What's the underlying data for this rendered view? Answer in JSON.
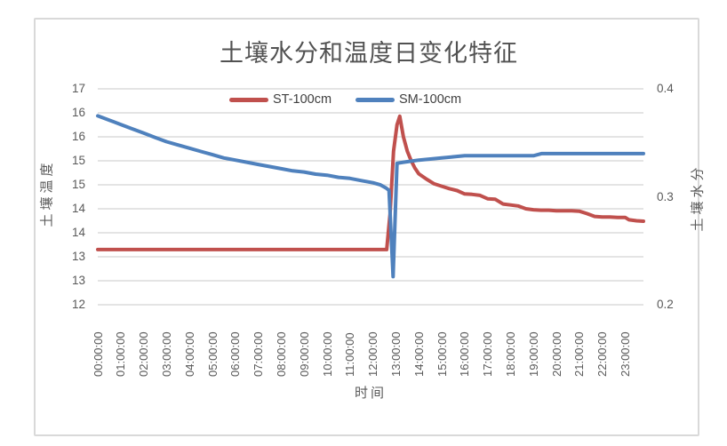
{
  "chart_data": {
    "type": "line",
    "title": "土壤水分和温度日变化特征",
    "xlabel": "时间",
    "ylabel_left": "土壤温度",
    "ylabel_right": "土壤水分",
    "legend": {
      "position": "top-inside",
      "entries": [
        "ST-100cm",
        "SM-100cm"
      ]
    },
    "left_axis": {
      "min": 12,
      "max": 16.5,
      "step": 0.5,
      "tick_labels_top_to_bottom": [
        "17",
        "16",
        "16",
        "15",
        "15",
        "14",
        "14",
        "13",
        "13",
        "12"
      ]
    },
    "right_axis": {
      "min": 0.2,
      "max": 0.4,
      "tick_values": [
        0.4,
        0.3,
        0.2
      ],
      "tick_labels": [
        "0.4",
        "0.3",
        "0.2"
      ]
    },
    "x_tick_labels": [
      "00:00:00",
      "01:00:00",
      "02:00:00",
      "03:00:00",
      "04:00:00",
      "05:00:00",
      "06:00:00",
      "07:00:00",
      "08:00:00",
      "09:00:00",
      "10:00:00",
      "11:00:00",
      "12:00:00",
      "13:00:00",
      "14:00:00",
      "15:00:00",
      "16:00:00",
      "17:00:00",
      "18:00:00",
      "19:00:00",
      "20:00:00",
      "21:00:00",
      "22:00:00",
      "23:00:00"
    ],
    "grid": true,
    "series": [
      {
        "name": "ST-100cm",
        "axis": "left",
        "color": "#C0504D",
        "points": [
          [
            0,
            13.15
          ],
          [
            1,
            13.15
          ],
          [
            2,
            13.15
          ],
          [
            3,
            13.15
          ],
          [
            4,
            13.15
          ],
          [
            5,
            13.15
          ],
          [
            6,
            13.15
          ],
          [
            7,
            13.15
          ],
          [
            8,
            13.15
          ],
          [
            9,
            13.15
          ],
          [
            10,
            13.15
          ],
          [
            11,
            13.15
          ],
          [
            12,
            13.15
          ],
          [
            12.6,
            13.15
          ],
          [
            12.75,
            13.9
          ],
          [
            12.9,
            15.2
          ],
          [
            13.05,
            15.75
          ],
          [
            13.17,
            15.93
          ],
          [
            13.33,
            15.5
          ],
          [
            13.5,
            15.2
          ],
          [
            13.67,
            15.0
          ],
          [
            13.83,
            14.85
          ],
          [
            14,
            14.73
          ],
          [
            14.33,
            14.62
          ],
          [
            14.67,
            14.52
          ],
          [
            15,
            14.47
          ],
          [
            15.33,
            14.42
          ],
          [
            15.67,
            14.38
          ],
          [
            16,
            14.31
          ],
          [
            16.33,
            14.3
          ],
          [
            16.67,
            14.28
          ],
          [
            17,
            14.21
          ],
          [
            17.33,
            14.2
          ],
          [
            17.67,
            14.1
          ],
          [
            18,
            14.08
          ],
          [
            18.33,
            14.06
          ],
          [
            18.67,
            14.0
          ],
          [
            19,
            13.98
          ],
          [
            19.33,
            13.97
          ],
          [
            19.67,
            13.97
          ],
          [
            20,
            13.96
          ],
          [
            20.33,
            13.96
          ],
          [
            20.67,
            13.96
          ],
          [
            21,
            13.95
          ],
          [
            21.33,
            13.9
          ],
          [
            21.67,
            13.84
          ],
          [
            22,
            13.83
          ],
          [
            22.33,
            13.83
          ],
          [
            22.67,
            13.82
          ],
          [
            23,
            13.82
          ],
          [
            23.17,
            13.77
          ],
          [
            23.5,
            13.75
          ],
          [
            23.8,
            13.74
          ]
        ]
      },
      {
        "name": "SM-100cm",
        "axis": "right",
        "color": "#4F81BD",
        "points": [
          [
            0,
            0.375
          ],
          [
            0.5,
            0.371
          ],
          [
            1,
            0.367
          ],
          [
            1.5,
            0.363
          ],
          [
            2,
            0.359
          ],
          [
            2.5,
            0.355
          ],
          [
            3,
            0.351
          ],
          [
            3.5,
            0.348
          ],
          [
            4,
            0.345
          ],
          [
            4.5,
            0.342
          ],
          [
            5,
            0.339
          ],
          [
            5.5,
            0.336
          ],
          [
            6,
            0.334
          ],
          [
            6.5,
            0.332
          ],
          [
            7,
            0.33
          ],
          [
            7.5,
            0.328
          ],
          [
            8,
            0.326
          ],
          [
            8.5,
            0.324
          ],
          [
            9,
            0.323
          ],
          [
            9.5,
            0.321
          ],
          [
            10,
            0.32
          ],
          [
            10.5,
            0.318
          ],
          [
            11,
            0.317
          ],
          [
            11.5,
            0.315
          ],
          [
            12,
            0.313
          ],
          [
            12.33,
            0.311
          ],
          [
            12.58,
            0.308
          ],
          [
            12.7,
            0.306
          ],
          [
            12.88,
            0.226
          ],
          [
            13.05,
            0.331
          ],
          [
            13.33,
            0.332
          ],
          [
            13.67,
            0.333
          ],
          [
            14,
            0.334
          ],
          [
            14.5,
            0.335
          ],
          [
            15,
            0.336
          ],
          [
            15.5,
            0.337
          ],
          [
            16,
            0.338
          ],
          [
            16.5,
            0.338
          ],
          [
            17,
            0.338
          ],
          [
            17.5,
            0.338
          ],
          [
            18,
            0.338
          ],
          [
            18.5,
            0.338
          ],
          [
            19,
            0.338
          ],
          [
            19.35,
            0.34
          ],
          [
            19.67,
            0.34
          ],
          [
            20,
            0.34
          ],
          [
            20.5,
            0.34
          ],
          [
            21,
            0.34
          ],
          [
            21.5,
            0.34
          ],
          [
            22,
            0.34
          ],
          [
            22.5,
            0.34
          ],
          [
            23,
            0.34
          ],
          [
            23.5,
            0.34
          ],
          [
            23.8,
            0.34
          ]
        ]
      }
    ],
    "colors": {
      "grid": "#D4D4D4",
      "frame_border": "#D9D9D9",
      "tick_text": "#595959"
    }
  }
}
